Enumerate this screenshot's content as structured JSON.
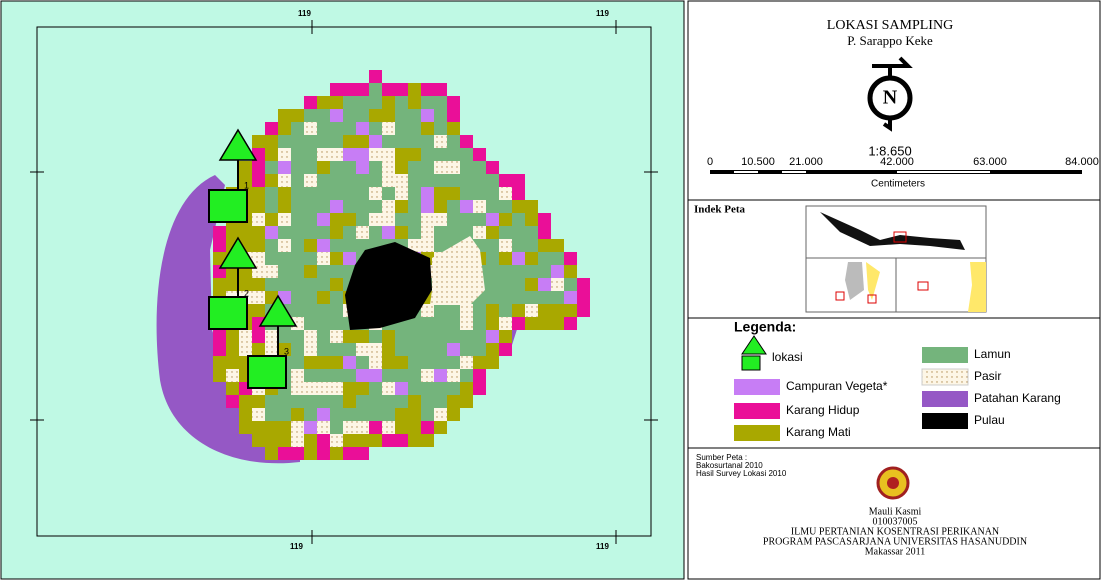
{
  "map": {
    "grid_labels": [
      "119",
      "119",
      "119",
      "119"
    ],
    "stations": [
      "1",
      "2",
      "3"
    ]
  },
  "panel": {
    "title": "LOKASI SAMPLING",
    "subtitle": "P. Sarappo Keke",
    "north": "N",
    "scale": "1:8.650",
    "scale_ticks": [
      "0",
      "10.500",
      "21.000",
      "42.000",
      "63.000",
      "84.000"
    ],
    "scale_unit": "Centimeters",
    "index_title": "Indek Peta",
    "legend_title": "Legenda:",
    "legend": [
      {
        "label": "lokasi",
        "color": "#22ee22"
      },
      {
        "label": "Campuran Vegeta*",
        "color": "#c77df5"
      },
      {
        "label": "Karang Hidup",
        "color": "#ea0f98"
      },
      {
        "label": "Karang Mati",
        "color": "#a9a800"
      },
      {
        "label": "Lamun",
        "color": "#74b47c"
      },
      {
        "label": "Pasir",
        "color": "#fdf6e6"
      },
      {
        "label": "Patahan Karang",
        "color": "#9558c5"
      },
      {
        "label": "Pulau",
        "color": "#000000"
      }
    ],
    "source_title": "Sumber Peta :",
    "sources": [
      "Bakosurtanal 2010",
      "Hasil Survey Lokasi 2010"
    ],
    "author": [
      "Mauli Kasmi",
      "010037005",
      "ILMU PERTANIAN KOSENTRASI PERIKANAN",
      "PROGRAM PASCASARJANA UNIVERSITAS HASANUDDIN",
      "Makassar 2011"
    ]
  }
}
